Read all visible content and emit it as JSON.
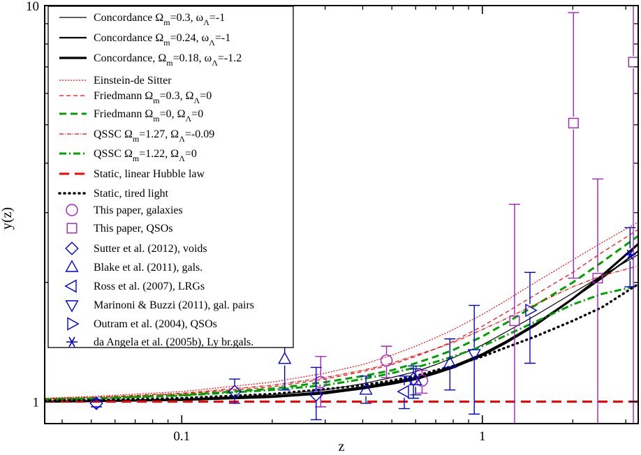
{
  "chart_data": {
    "type": "scatter",
    "xscale": "log",
    "yscale": "log",
    "xlabel": "z",
    "ylabel": "y(z)",
    "xlim": [
      0.035,
      3.3
    ],
    "ylim": [
      0.88,
      10
    ],
    "x_tick_labels": [
      {
        "value": 0.1,
        "label": "0.1"
      },
      {
        "value": 1,
        "label": "1"
      }
    ],
    "y_tick_labels": [
      {
        "value": 1,
        "label": "1"
      },
      {
        "value": 10,
        "label": "10"
      }
    ],
    "x_minor_ticks": [
      0.04,
      0.05,
      0.06,
      0.07,
      0.08,
      0.09,
      0.2,
      0.3,
      0.4,
      0.5,
      0.6,
      0.7,
      0.8,
      0.9,
      2,
      3
    ],
    "y_minor_ticks": [
      2,
      3,
      4,
      5,
      6,
      7,
      8,
      9
    ],
    "legend": [
      {
        "key": "conc1",
        "text": "Concordance Ω",
        "sub1": "m",
        "mid": "=0.3, ω",
        "sub2": "Λ",
        "tail": "=-1"
      },
      {
        "key": "conc2",
        "text": "Concordance Ω",
        "sub1": "m",
        "mid": "=0.24, ω",
        "sub2": "Λ",
        "tail": "=-1"
      },
      {
        "key": "conc3",
        "text": "Concordance, Ω",
        "sub1": "m",
        "mid": "=0.18, ω",
        "sub2": "Λ",
        "tail": "=-1.2"
      },
      {
        "key": "eds",
        "text": "Einstein-de Sitter",
        "sub1": "",
        "mid": "",
        "sub2": "",
        "tail": ""
      },
      {
        "key": "fried1",
        "text": "Friedmann Ω",
        "sub1": "m",
        "mid": "=0.3, Ω",
        "sub2": "Λ",
        "tail": "=0"
      },
      {
        "key": "fried2",
        "text": "Friedmann Ω",
        "sub1": "m",
        "mid": "=0, Ω",
        "sub2": "Λ",
        "tail": "=0"
      },
      {
        "key": "qssc1",
        "text": "QSSC Ω",
        "sub1": "m",
        "mid": "=1.27, Ω",
        "sub2": "Λ",
        "tail": "=-0.09"
      },
      {
        "key": "qssc2",
        "text": "QSSC Ω",
        "sub1": "m",
        "mid": "=1.22, Ω",
        "sub2": "Λ",
        "tail": "=0"
      },
      {
        "key": "static_lin",
        "text": "Static, linear Hubble law",
        "sub1": "",
        "mid": "",
        "sub2": "",
        "tail": ""
      },
      {
        "key": "tired",
        "text": "Static, tired light",
        "sub1": "",
        "mid": "",
        "sub2": "",
        "tail": ""
      },
      {
        "key": "gal",
        "text": "This paper, galaxies",
        "sub1": "",
        "mid": "",
        "sub2": "",
        "tail": ""
      },
      {
        "key": "qso",
        "text": "This paper, QSOs",
        "sub1": "",
        "mid": "",
        "sub2": "",
        "tail": ""
      },
      {
        "key": "sutter",
        "text": "Sutter et al. (2012), voids",
        "sub1": "",
        "mid": "",
        "sub2": "",
        "tail": ""
      },
      {
        "key": "blake",
        "text": "Blake et al. (2011), gals.",
        "sub1": "",
        "mid": "",
        "sub2": "",
        "tail": ""
      },
      {
        "key": "ross",
        "text": "Ross et al. (2007), LRGs",
        "sub1": "",
        "mid": "",
        "sub2": "",
        "tail": ""
      },
      {
        "key": "marinoni",
        "text": "Marinoni & Buzzi (2011), gal. pairs",
        "sub1": "",
        "mid": "",
        "sub2": "",
        "tail": ""
      },
      {
        "key": "outram",
        "text": "Outram et al. (2004), QSOs",
        "sub1": "",
        "mid": "",
        "sub2": "",
        "tail": ""
      },
      {
        "key": "daangela",
        "text": "da Angela et al. (2005b), Ly br.gals.",
        "sub1": "",
        "mid": "",
        "sub2": "",
        "tail": ""
      }
    ],
    "curves": [
      {
        "key": "conc1",
        "color": "#000000",
        "dash": "",
        "width": 1.2,
        "x": [
          0.035,
          0.05,
          0.1,
          0.2,
          0.3,
          0.4,
          0.5,
          0.6,
          0.7,
          0.8,
          1.0,
          1.2,
          1.5,
          2.0,
          2.5,
          3.3
        ],
        "y": [
          1.0,
          1.005,
          1.015,
          1.04,
          1.07,
          1.11,
          1.15,
          1.19,
          1.24,
          1.29,
          1.39,
          1.5,
          1.65,
          1.88,
          2.08,
          2.35
        ]
      },
      {
        "key": "conc2",
        "color": "#000000",
        "dash": "",
        "width": 2.2,
        "x": [
          0.035,
          0.05,
          0.1,
          0.2,
          0.3,
          0.4,
          0.5,
          0.6,
          0.7,
          0.8,
          1.0,
          1.2,
          1.5,
          2.0,
          2.5,
          3.3
        ],
        "y": [
          1.0,
          1.004,
          1.012,
          1.032,
          1.058,
          1.088,
          1.12,
          1.15,
          1.19,
          1.23,
          1.32,
          1.42,
          1.57,
          1.82,
          2.05,
          2.4
        ]
      },
      {
        "key": "conc3",
        "color": "#000000",
        "dash": "",
        "width": 3.2,
        "x": [
          0.035,
          0.05,
          0.1,
          0.2,
          0.3,
          0.4,
          0.5,
          0.6,
          0.7,
          0.8,
          1.0,
          1.2,
          1.5,
          2.0,
          2.5,
          3.3
        ],
        "y": [
          1.0,
          1.003,
          1.01,
          1.028,
          1.05,
          1.08,
          1.11,
          1.14,
          1.18,
          1.22,
          1.31,
          1.41,
          1.56,
          1.82,
          2.08,
          2.5
        ]
      },
      {
        "key": "eds",
        "color": "#ff0000",
        "dash": "2,2",
        "width": 1.2,
        "x": [
          0.035,
          0.05,
          0.1,
          0.2,
          0.3,
          0.4,
          0.5,
          0.6,
          0.7,
          0.8,
          1.0,
          1.2,
          1.5,
          2.0,
          2.5,
          3.3
        ],
        "y": [
          1.02,
          1.03,
          1.06,
          1.12,
          1.18,
          1.24,
          1.31,
          1.38,
          1.45,
          1.52,
          1.66,
          1.8,
          2.0,
          2.28,
          2.52,
          2.84
        ]
      },
      {
        "key": "fried1",
        "color": "#ff0000",
        "dash": "6,4",
        "width": 1.2,
        "x": [
          0.035,
          0.05,
          0.1,
          0.2,
          0.3,
          0.4,
          0.5,
          0.6,
          0.7,
          0.8,
          1.0,
          1.2,
          1.5,
          2.0,
          2.5,
          3.3
        ],
        "y": [
          1.015,
          1.022,
          1.045,
          1.09,
          1.14,
          1.19,
          1.24,
          1.3,
          1.36,
          1.42,
          1.55,
          1.68,
          1.86,
          2.12,
          2.38,
          2.72
        ]
      },
      {
        "key": "fried2",
        "color": "#00a000",
        "dash": "10,6",
        "width": 3,
        "x": [
          0.035,
          0.05,
          0.1,
          0.2,
          0.3,
          0.4,
          0.5,
          0.6,
          0.7,
          0.8,
          1.0,
          1.2,
          1.5,
          2.0,
          2.5,
          3.3
        ],
        "y": [
          1.013,
          1.018,
          1.038,
          1.078,
          1.12,
          1.16,
          1.2,
          1.25,
          1.3,
          1.35,
          1.46,
          1.58,
          1.75,
          2.0,
          2.25,
          2.62
        ]
      },
      {
        "key": "qssc1",
        "color": "#ff0000",
        "dash": "6,2,1,2",
        "width": 1.2,
        "x": [
          0.035,
          0.05,
          0.1,
          0.2,
          0.3,
          0.4,
          0.5,
          0.6,
          0.7,
          0.8,
          1.0,
          1.2,
          1.5,
          2.0,
          2.5,
          3.3
        ],
        "y": [
          1.018,
          1.025,
          1.05,
          1.1,
          1.15,
          1.2,
          1.25,
          1.31,
          1.36,
          1.41,
          1.52,
          1.62,
          1.76,
          1.95,
          2.08,
          2.2
        ]
      },
      {
        "key": "qssc2",
        "color": "#00a000",
        "dash": "10,4,2,4",
        "width": 3,
        "x": [
          0.035,
          0.05,
          0.1,
          0.2,
          0.3,
          0.4,
          0.5,
          0.6,
          0.7,
          0.8,
          1.0,
          1.2,
          1.5,
          2.0,
          2.5,
          3.3
        ],
        "y": [
          1.012,
          1.018,
          1.036,
          1.07,
          1.1,
          1.14,
          1.18,
          1.22,
          1.26,
          1.3,
          1.38,
          1.47,
          1.59,
          1.76,
          1.87,
          1.96
        ]
      },
      {
        "key": "static_lin",
        "color": "#ff0000",
        "dash": "14,8",
        "width": 3,
        "x": [
          0.035,
          3.3
        ],
        "y": [
          1.0,
          1.0
        ]
      },
      {
        "key": "tired",
        "color": "#000000",
        "dash": "1,6",
        "width": 3.5,
        "x": [
          0.035,
          0.05,
          0.1,
          0.2,
          0.3,
          0.4,
          0.5,
          0.6,
          0.7,
          0.8,
          1.0,
          1.2,
          1.5,
          2.0,
          2.5,
          3.3
        ],
        "y": [
          1.005,
          1.008,
          1.02,
          1.045,
          1.075,
          1.1,
          1.13,
          1.16,
          1.2,
          1.23,
          1.3,
          1.37,
          1.46,
          1.6,
          1.73,
          1.98
        ]
      }
    ],
    "points": [
      {
        "key": "gal",
        "color": "#a020c0",
        "marker": "circle",
        "x": 0.29,
        "y": 1.12,
        "ylo": 0.97,
        "yhi": 1.3
      },
      {
        "key": "gal",
        "color": "#a020c0",
        "marker": "circle",
        "x": 0.48,
        "y": 1.27,
        "ylo": 1.15,
        "yhi": 1.38
      },
      {
        "key": "gal",
        "color": "#a020c0",
        "marker": "circle",
        "x": 0.63,
        "y": 1.13,
        "ylo": 1.05,
        "yhi": 1.2
      },
      {
        "key": "qso",
        "color": "#a020c0",
        "marker": "square",
        "x": 1.28,
        "y": 1.6,
        "ylo": 0.88,
        "yhi": 3.15
      },
      {
        "key": "qso",
        "color": "#a020c0",
        "marker": "square",
        "x": 2.01,
        "y": 5.05,
        "ylo": 2.05,
        "yhi": 9.6
      },
      {
        "key": "qso",
        "color": "#a020c0",
        "marker": "square",
        "x": 2.42,
        "y": 2.05,
        "ylo": 0.88,
        "yhi": 3.65
      },
      {
        "key": "qso",
        "color": "#a020c0",
        "marker": "square",
        "x": 3.18,
        "y": 7.2,
        "ylo": 0.88,
        "yhi": 10
      },
      {
        "key": "sutter",
        "color": "#0000dd",
        "marker": "diamond",
        "x": 0.052,
        "y": 0.99,
        "ylo": 0.97,
        "yhi": 1.01
      },
      {
        "key": "sutter",
        "color": "#0000dd",
        "marker": "diamond",
        "x": 0.15,
        "y": 1.06,
        "ylo": 0.99,
        "yhi": 1.14
      },
      {
        "key": "sutter",
        "color": "#0000dd",
        "marker": "diamond",
        "x": 0.28,
        "y": 1.04,
        "ylo": 0.9,
        "yhi": 1.22
      },
      {
        "key": "sutter",
        "color": "#0000dd",
        "marker": "diamond",
        "x": 0.59,
        "y": 1.14,
        "ylo": 1.02,
        "yhi": 1.23
      },
      {
        "key": "blake",
        "color": "#0000dd",
        "marker": "triangle-up",
        "x": 0.22,
        "y": 1.28,
        "ylo": 1.07,
        "yhi": 1.48
      },
      {
        "key": "blake",
        "color": "#0000dd",
        "marker": "triangle-up",
        "x": 0.41,
        "y": 1.07,
        "ylo": 0.99,
        "yhi": 1.16
      },
      {
        "key": "blake",
        "color": "#0000dd",
        "marker": "triangle-up",
        "x": 0.6,
        "y": 1.13,
        "ylo": 1.04,
        "yhi": 1.21
      },
      {
        "key": "blake",
        "color": "#0000dd",
        "marker": "triangle-up",
        "x": 0.78,
        "y": 1.25,
        "ylo": 1.07,
        "yhi": 1.44
      },
      {
        "key": "ross",
        "color": "#0000dd",
        "marker": "triangle-left",
        "x": 0.55,
        "y": 1.06,
        "ylo": 0.96,
        "yhi": 1.16
      },
      {
        "key": "marinoni",
        "color": "#0000dd",
        "marker": "triangle-down",
        "x": 0.94,
        "y": 1.32,
        "ylo": 0.93,
        "yhi": 1.75
      },
      {
        "key": "outram",
        "color": "#0000dd",
        "marker": "triangle-right",
        "x": 1.44,
        "y": 1.7,
        "ylo": 1.25,
        "yhi": 2.12
      },
      {
        "key": "daangela",
        "color": "#0000dd",
        "marker": "star",
        "x": 3.1,
        "y": 2.35,
        "ylo": 1.95,
        "yhi": 2.75
      }
    ]
  }
}
